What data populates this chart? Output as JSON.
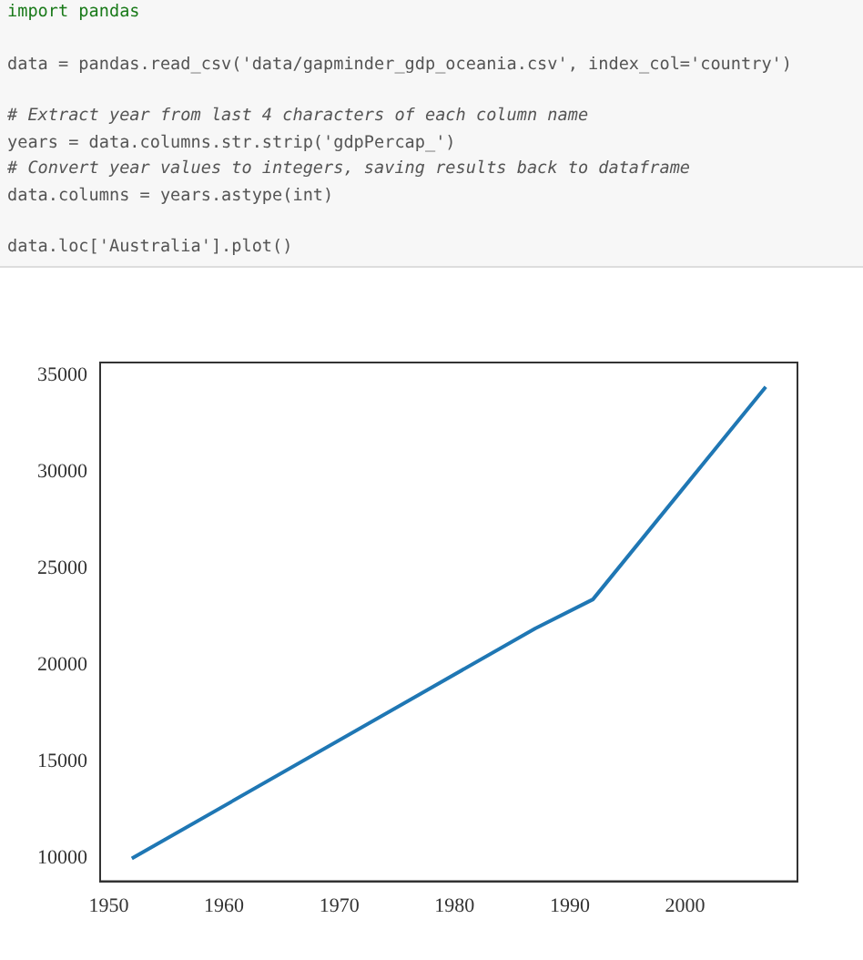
{
  "chart_data": {
    "type": "line",
    "annotations": [
      "import pandas",
      "data = pandas.read_csv('data/gapminder_gdp_oceania.csv', index_col='country')",
      "# Extract year from last 4 characters of each column name",
      "years = data.columns.str.strip('gdpPercap_')",
      "# Convert year values to integers, saving results back to dataframe",
      "data.columns = years.astype(int)",
      "data.loc['Australia'].plot()"
    ],
    "x": [
      1952,
      1987,
      1992,
      2007
    ],
    "series": [
      {
        "color": "#1f77b4",
        "values": [
          10000,
          21900,
          23400,
          34400
        ]
      }
    ],
    "xlim": [
      1949.25,
      2009.75
    ],
    "xticks": [
      1950,
      1960,
      1970,
      1980,
      1990,
      2000
    ],
    "ylim": [
      8820,
      35655
    ],
    "yticks": [
      10000,
      15000,
      20000,
      25000,
      30000,
      35000
    ],
    "grid": false,
    "legend": false,
    "marker": "none",
    "line_style": "solid"
  }
}
